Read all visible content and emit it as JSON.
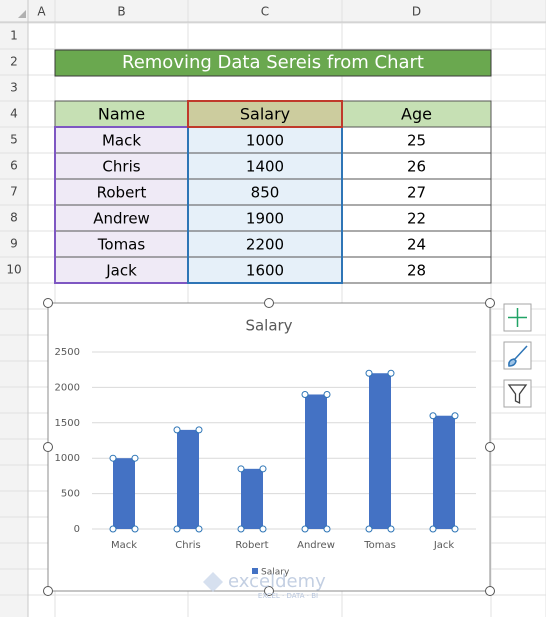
{
  "sheet": {
    "columns": [
      "A",
      "B",
      "C",
      "D"
    ],
    "rows": [
      1,
      2,
      3,
      4,
      5,
      6,
      7,
      8,
      9,
      10
    ]
  },
  "title": "Removing Data Sereis from Chart",
  "table": {
    "header": [
      "Name",
      "Salary",
      "Age"
    ],
    "rows": [
      [
        "Mack",
        1000,
        25
      ],
      [
        "Chris",
        1400,
        26
      ],
      [
        "Robert",
        850,
        27
      ],
      [
        "Andrew",
        1900,
        22
      ],
      [
        "Tomas",
        2200,
        24
      ],
      [
        "Jack",
        1600,
        28
      ]
    ]
  },
  "chart_data": {
    "type": "bar",
    "title": "Salary",
    "categories": [
      "Mack",
      "Chris",
      "Robert",
      "Andrew",
      "Tomas",
      "Jack"
    ],
    "series": [
      {
        "name": "Salary",
        "color": "#4472c4",
        "values": [
          1000,
          1400,
          850,
          1900,
          2200,
          1600
        ]
      }
    ],
    "ylim": [
      0,
      2500
    ],
    "yticks": [
      0,
      500,
      1000,
      1500,
      2000,
      2500
    ],
    "grid": true,
    "legend": "bottom"
  },
  "watermark": {
    "brand": "exceldemy",
    "tagline": "EXCEL · DATA · BI"
  }
}
